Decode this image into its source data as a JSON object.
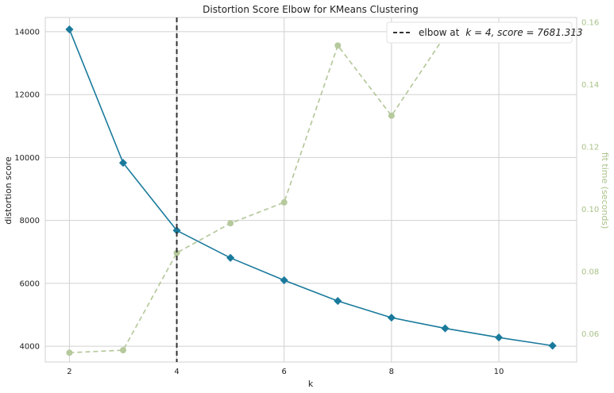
{
  "chart_data": {
    "type": "line",
    "title": "Distortion Score Elbow for KMeans Clustering",
    "xlabel": "k",
    "ylabel": "distortion score",
    "y2label": "fit time (seconds)",
    "x": [
      2,
      3,
      4,
      5,
      6,
      7,
      8,
      9,
      10,
      11
    ],
    "xlim": [
      1.55,
      11.45
    ],
    "ylim": [
      3500,
      14450
    ],
    "y2lim": [
      0.051,
      0.1615
    ],
    "xticks": [
      2,
      4,
      6,
      8,
      10
    ],
    "yticks": [
      4000,
      6000,
      8000,
      10000,
      12000,
      14000
    ],
    "y2ticks": [
      0.06,
      0.08,
      0.1,
      0.12,
      0.14,
      0.16
    ],
    "y2tick_labels": [
      "0.06",
      "0.08",
      "0.10",
      "0.12",
      "0.14",
      "0.16"
    ],
    "series": [
      {
        "axis": "left",
        "color": "#1a7a9c",
        "marker": "diamond",
        "values": [
          14070,
          9830,
          7681,
          6810,
          6100,
          5440,
          4910,
          4570,
          4280,
          4020
        ]
      },
      {
        "axis": "right",
        "color": "#b6c99d",
        "marker": "circle",
        "dashed": true,
        "values": [
          0.054,
          0.0548,
          0.086,
          0.0955,
          0.1022,
          0.1525,
          0.13,
          0.1557,
          0.1548,
          0.1582
        ]
      }
    ],
    "elbow": {
      "x": 4,
      "legend_label": "elbow at",
      "legend_math": "k = 4, score = 7681.313",
      "color": "#333333"
    },
    "grid": true,
    "legend_position": "top-right"
  }
}
